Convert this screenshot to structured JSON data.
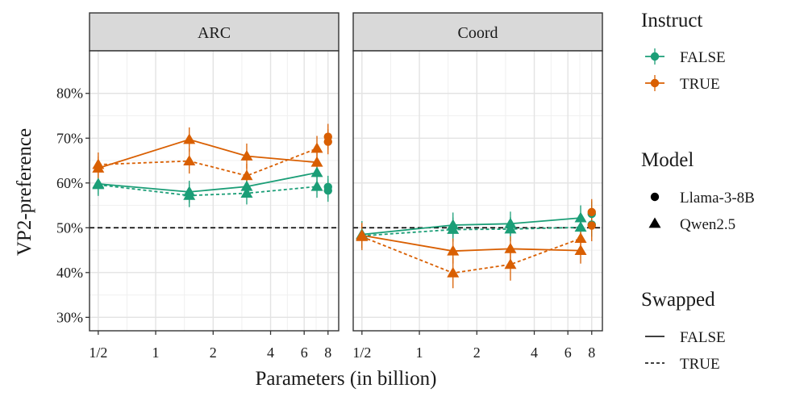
{
  "chart_data": {
    "type": "line",
    "x_scale": "log2",
    "xlabel": "Parameters (in billion)",
    "ylabel": "VP2-preference",
    "ylim": [
      0.27,
      0.895
    ],
    "xlim": [
      0.45,
      9.1
    ],
    "x_ticks": [
      {
        "value": 0.5,
        "label": "1/2"
      },
      {
        "value": 1,
        "label": "1"
      },
      {
        "value": 2,
        "label": "2"
      },
      {
        "value": 4,
        "label": "4"
      },
      {
        "value": 6,
        "label": "6"
      },
      {
        "value": 8,
        "label": "8"
      }
    ],
    "y_ticks": [
      {
        "value": 0.3,
        "label": "30%"
      },
      {
        "value": 0.4,
        "label": "40%"
      },
      {
        "value": 0.5,
        "label": "50%"
      },
      {
        "value": 0.6,
        "label": "60%"
      },
      {
        "value": 0.7,
        "label": "70%"
      },
      {
        "value": 0.8,
        "label": "80%"
      }
    ],
    "reference_line": 0.5,
    "colors": {
      "FALSE": "#1b9e77",
      "TRUE": "#d95f02"
    },
    "facets": [
      {
        "name": "ARC",
        "qwen": [
          {
            "instruct": "FALSE",
            "swapped": "FALSE",
            "points": [
              [
                0.5,
                0.598,
                0.574,
                0.622
              ],
              [
                1.5,
                0.58,
                0.555,
                0.605
              ],
              [
                3,
                0.592,
                0.567,
                0.617
              ],
              [
                7,
                0.623,
                0.598,
                0.648
              ]
            ]
          },
          {
            "instruct": "FALSE",
            "swapped": "TRUE",
            "points": [
              [
                0.5,
                0.596,
                0.571,
                0.621
              ],
              [
                1.5,
                0.572,
                0.546,
                0.597
              ],
              [
                3,
                0.577,
                0.552,
                0.602
              ],
              [
                7,
                0.592,
                0.567,
                0.617
              ]
            ]
          },
          {
            "instruct": "TRUE",
            "swapped": "FALSE",
            "points": [
              [
                0.5,
                0.633,
                0.607,
                0.659
              ],
              [
                1.5,
                0.697,
                0.67,
                0.724
              ],
              [
                3,
                0.66,
                0.632,
                0.688
              ],
              [
                7,
                0.646,
                0.618,
                0.674
              ]
            ]
          },
          {
            "instruct": "TRUE",
            "swapped": "TRUE",
            "points": [
              [
                0.5,
                0.641,
                0.614,
                0.668
              ],
              [
                1.5,
                0.649,
                0.621,
                0.677
              ],
              [
                3,
                0.616,
                0.589,
                0.643
              ],
              [
                7,
                0.677,
                0.649,
                0.705
              ]
            ]
          }
        ],
        "llama": [
          {
            "instruct": "FALSE",
            "swapped": "FALSE",
            "x": 8,
            "y": 0.591,
            "lo": 0.566,
            "hi": 0.616
          },
          {
            "instruct": "FALSE",
            "swapped": "TRUE",
            "x": 8,
            "y": 0.583,
            "lo": 0.558,
            "hi": 0.608
          },
          {
            "instruct": "TRUE",
            "swapped": "FALSE",
            "x": 8,
            "y": 0.703,
            "lo": 0.674,
            "hi": 0.732
          },
          {
            "instruct": "TRUE",
            "swapped": "TRUE",
            "x": 8,
            "y": 0.692,
            "lo": 0.664,
            "hi": 0.72
          }
        ]
      },
      {
        "name": "Coord",
        "qwen": [
          {
            "instruct": "FALSE",
            "swapped": "FALSE",
            "points": [
              [
                0.5,
                0.485,
                0.455,
                0.515
              ],
              [
                1.5,
                0.506,
                0.478,
                0.534
              ],
              [
                3,
                0.509,
                0.482,
                0.536
              ],
              [
                7,
                0.522,
                0.494,
                0.55
              ]
            ]
          },
          {
            "instruct": "FALSE",
            "swapped": "TRUE",
            "points": [
              [
                0.5,
                0.482,
                0.454,
                0.51
              ],
              [
                1.5,
                0.496,
                0.469,
                0.523
              ],
              [
                3,
                0.497,
                0.47,
                0.524
              ],
              [
                7,
                0.501,
                0.474,
                0.528
              ]
            ]
          },
          {
            "instruct": "TRUE",
            "swapped": "FALSE",
            "points": [
              [
                0.5,
                0.483,
                0.455,
                0.511
              ],
              [
                1.5,
                0.448,
                0.42,
                0.476
              ],
              [
                3,
                0.453,
                0.425,
                0.481
              ],
              [
                7,
                0.449,
                0.42,
                0.478
              ]
            ]
          },
          {
            "instruct": "TRUE",
            "swapped": "TRUE",
            "points": [
              [
                0.5,
                0.48,
                0.45,
                0.51
              ],
              [
                1.5,
                0.399,
                0.365,
                0.433
              ],
              [
                3,
                0.418,
                0.382,
                0.454
              ],
              [
                7,
                0.476,
                0.448,
                0.504
              ]
            ]
          }
        ],
        "llama": [
          {
            "instruct": "FALSE",
            "swapped": "FALSE",
            "x": 8,
            "y": 0.531,
            "lo": 0.503,
            "hi": 0.559
          },
          {
            "instruct": "FALSE",
            "swapped": "TRUE",
            "x": 8,
            "y": 0.507,
            "lo": 0.48,
            "hi": 0.534
          },
          {
            "instruct": "TRUE",
            "swapped": "FALSE",
            "x": 8,
            "y": 0.535,
            "lo": 0.506,
            "hi": 0.564
          },
          {
            "instruct": "TRUE",
            "swapped": "TRUE",
            "x": 8,
            "y": 0.505,
            "lo": 0.47,
            "hi": 0.54
          }
        ]
      }
    ],
    "legend": {
      "placement": "right",
      "instruct": {
        "title": "Instruct",
        "entries": [
          {
            "key": "FALSE",
            "label": "FALSE"
          },
          {
            "key": "TRUE",
            "label": "TRUE"
          }
        ]
      },
      "model": {
        "title": "Model",
        "entries": [
          {
            "shape": "circle",
            "label": "Llama-3-8B"
          },
          {
            "shape": "triangle",
            "label": "Qwen2.5"
          }
        ]
      },
      "swapped": {
        "title": "Swapped",
        "entries": [
          {
            "dash": "solid",
            "label": "FALSE"
          },
          {
            "dash": "dashed",
            "label": "TRUE"
          }
        ]
      }
    }
  }
}
